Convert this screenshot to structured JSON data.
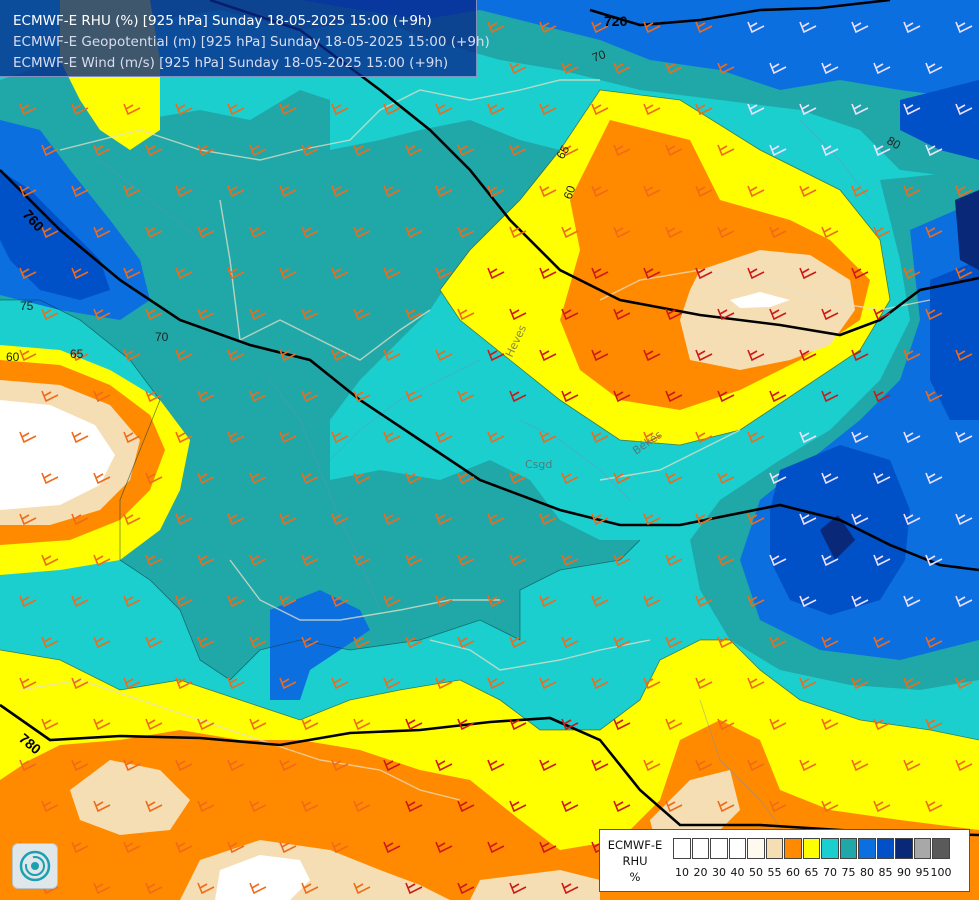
{
  "header": {
    "line1": "ECMWF-E RHU (%) [925 hPa] Sunday 18-05-2025 15:00 (+9h)",
    "line2": "ECMWF-E Geopotential (m) [925 hPa] Sunday 18-05-2025 15:00 (+9h)",
    "line3": "ECMWF-E Wind (m/s) [925 hPa] Sunday 18-05-2025 15:00 (+9h)"
  },
  "contour_labels": {
    "geo_720": "720",
    "geo_760": "760",
    "geo_780": "780",
    "rhu_60_left": "60",
    "rhu_65_left": "65",
    "rhu_70_left": "70",
    "rhu_75_left": "75",
    "rhu_60_center": "60",
    "rhu_65_center": "65",
    "rhu_70_top": "70",
    "rhu_80_right": "80"
  },
  "place_labels": {
    "heves": "Heves",
    "bekes": "Békés",
    "csgd": "Csgd"
  },
  "legend": {
    "model": "ECMWF-E",
    "variable": "RHU",
    "unit": "%",
    "swatch_colors": [
      "#ffffff",
      "#ffffff",
      "#ffffff",
      "#ffffff",
      "#fffaf0",
      "#f5deb3",
      "#ff8a00",
      "#ffff00",
      "#1ccfcf",
      "#20a8a8",
      "#0b6fe0",
      "#0050c8",
      "#0a2878",
      "#a8a8a8",
      "#5a5a5a"
    ],
    "ticks": [
      "10",
      "20",
      "30",
      "40",
      "50",
      "55",
      "60",
      "65",
      "70",
      "75",
      "80",
      "85",
      "90",
      "95",
      "100"
    ]
  },
  "colors": {
    "cyan": "#1ccfcf",
    "teal": "#20a8a8",
    "blue": "#0b6fe0",
    "dark_blue": "#0050c8",
    "navy": "#0a2878",
    "yellow": "#ffff00",
    "orange": "#ff8a00",
    "wheat": "#f5deb3",
    "white": "#ffffff"
  }
}
